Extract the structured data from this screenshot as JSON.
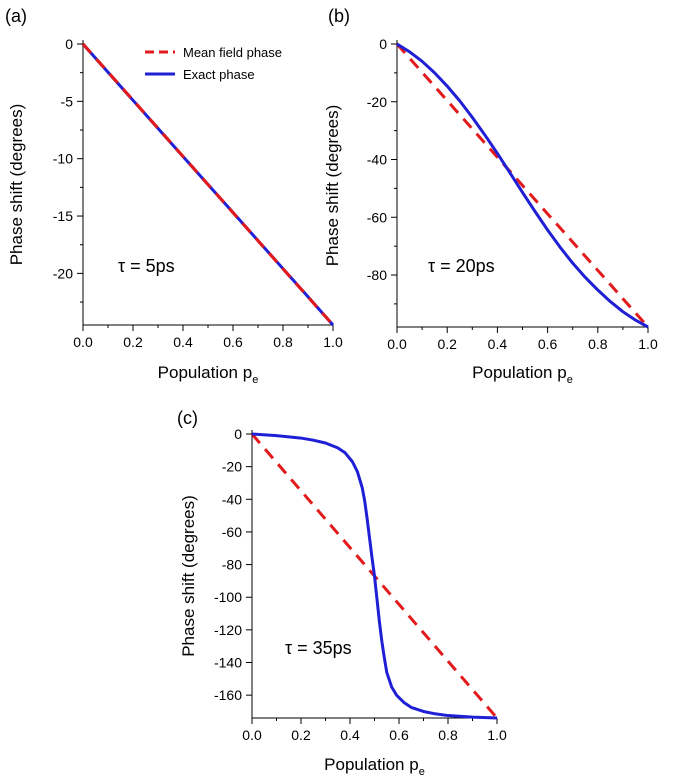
{
  "chart_data": [
    {
      "panel_label": "(a)",
      "type": "line",
      "xlabel": "Population p",
      "xlabel_sub": "e",
      "ylabel": "Phase shift (degrees)",
      "annotation": "τ = 5ps",
      "xlim": [
        0,
        1
      ],
      "ylim": [
        -24.5,
        0
      ],
      "xticks": [
        "0.0",
        "0.2",
        "0.4",
        "0.6",
        "0.8",
        "1.0"
      ],
      "yticks": [
        0,
        -5,
        -10,
        -15,
        -20
      ],
      "ytick_labels": [
        "0",
        "-5",
        "-10",
        "-15",
        "-20"
      ],
      "legend": {
        "position": "top-right",
        "entries": [
          {
            "label": "Mean field phase",
            "color": "#e31a1c",
            "style": "dashed"
          },
          {
            "label": "Exact phase",
            "color": "#1f1fd6",
            "style": "solid"
          }
        ]
      },
      "series": [
        {
          "name": "Mean field phase",
          "color": "#e31a1c",
          "style": "dashed",
          "x": [
            0,
            1
          ],
          "y": [
            0,
            -24.5
          ]
        },
        {
          "name": "Exact phase",
          "color": "#1f1fd6",
          "style": "solid",
          "x": [
            0,
            0.1,
            0.2,
            0.3,
            0.4,
            0.5,
            0.6,
            0.7,
            0.8,
            0.9,
            1.0
          ],
          "y": [
            0,
            -2.46,
            -4.91,
            -7.36,
            -9.81,
            -12.25,
            -14.69,
            -17.14,
            -19.59,
            -22.04,
            -24.5
          ]
        }
      ]
    },
    {
      "panel_label": "(b)",
      "type": "line",
      "xlabel": "Population p",
      "xlabel_sub": "e",
      "ylabel": "Phase shift (degrees)",
      "annotation": "τ = 20ps",
      "xlim": [
        0,
        1
      ],
      "ylim": [
        -98,
        0
      ],
      "xticks": [
        "0.0",
        "0.2",
        "0.4",
        "0.6",
        "0.8",
        "1.0"
      ],
      "yticks": [
        0,
        -20,
        -40,
        -60,
        -80
      ],
      "ytick_labels": [
        "0",
        "-20",
        "-40",
        "-60",
        "-80"
      ],
      "series": [
        {
          "name": "Mean field phase",
          "color": "#e31a1c",
          "style": "dashed",
          "x": [
            0,
            1
          ],
          "y": [
            0,
            -98
          ]
        },
        {
          "name": "Exact phase",
          "color": "#1f1fd6",
          "style": "solid",
          "x": [
            0,
            0.05,
            0.1,
            0.15,
            0.2,
            0.25,
            0.3,
            0.35,
            0.4,
            0.45,
            0.5,
            0.55,
            0.6,
            0.65,
            0.7,
            0.75,
            0.8,
            0.85,
            0.9,
            0.95,
            1.0
          ],
          "y": [
            0,
            -2.7,
            -6.0,
            -10.0,
            -14.6,
            -19.7,
            -25.4,
            -31.5,
            -37.9,
            -44.6,
            -51.4,
            -58.0,
            -64.4,
            -70.4,
            -75.9,
            -80.8,
            -85.2,
            -89.2,
            -92.7,
            -95.6,
            -98
          ]
        }
      ]
    },
    {
      "panel_label": "(c)",
      "type": "line",
      "xlabel": "Population p",
      "xlabel_sub": "e",
      "ylabel": "Phase shift (degrees)",
      "annotation": "τ = 35ps",
      "xlim": [
        0,
        1
      ],
      "ylim": [
        -174,
        0
      ],
      "xticks": [
        "0.0",
        "0.2",
        "0.4",
        "0.6",
        "0.8",
        "1.0"
      ],
      "yticks": [
        0,
        -20,
        -40,
        -60,
        -80,
        -100,
        -120,
        -140,
        -160
      ],
      "ytick_labels": [
        "0",
        "-20",
        "-40",
        "-60",
        "-80",
        "-100",
        "-120",
        "-140",
        "-160"
      ],
      "series": [
        {
          "name": "Mean field phase",
          "color": "#e31a1c",
          "style": "dashed",
          "x": [
            0,
            1
          ],
          "y": [
            0,
            -174
          ]
        },
        {
          "name": "Exact phase",
          "color": "#1f1fd6",
          "style": "solid",
          "x": [
            0,
            0.1,
            0.2,
            0.25,
            0.3,
            0.35,
            0.38,
            0.41,
            0.43,
            0.45,
            0.46,
            0.47,
            0.48,
            0.49,
            0.5,
            0.51,
            0.52,
            0.53,
            0.54,
            0.55,
            0.57,
            0.59,
            0.62,
            0.65,
            0.7,
            0.75,
            0.8,
            0.9,
            1.0
          ],
          "y": [
            0,
            -1.0,
            -2.5,
            -3.8,
            -5.5,
            -8.5,
            -11.5,
            -17,
            -23,
            -33,
            -41,
            -52,
            -64,
            -76,
            -87,
            -101,
            -115,
            -127,
            -137,
            -146,
            -155,
            -160,
            -164.5,
            -167.5,
            -170,
            -171.5,
            -172.5,
            -173.5,
            -174
          ]
        }
      ]
    }
  ]
}
